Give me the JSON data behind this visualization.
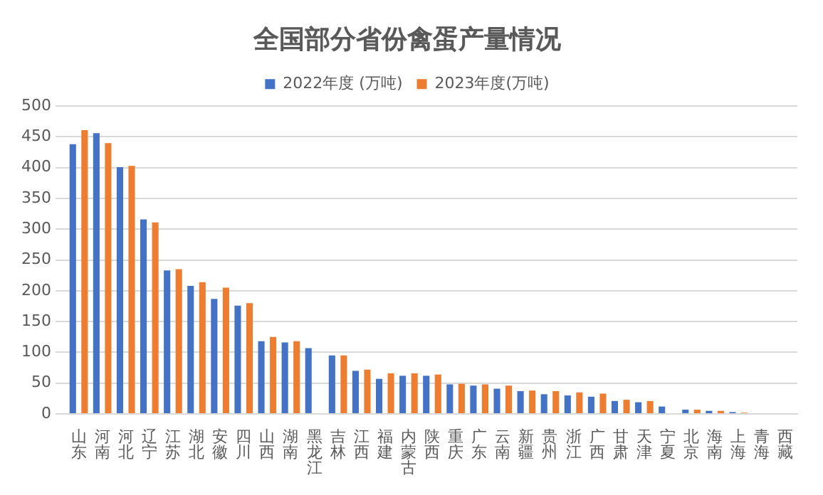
{
  "chart_data": {
    "type": "bar",
    "title": "全国部分省份禽蛋产量情况",
    "categories": [
      "山东",
      "河南",
      "河北",
      "辽宁",
      "江苏",
      "湖北",
      "安徽",
      "四川",
      "山西",
      "湖南",
      "黑龙江",
      "吉林",
      "江西",
      "福建",
      "内蒙古",
      "陕西",
      "重庆",
      "广东",
      "云南",
      "新疆",
      "贵州",
      "浙江",
      "广西",
      "甘肃",
      "天津",
      "宁夏",
      "北京",
      "海南",
      "上海",
      "青海",
      "西藏"
    ],
    "series": [
      {
        "name": "2022年度 (万吨)",
        "color": "#4472c4",
        "values": [
          438,
          456,
          401,
          316,
          233,
          208,
          187,
          176,
          118,
          116,
          107,
          95,
          70,
          57,
          62,
          62,
          48,
          46,
          41,
          37,
          32,
          30,
          28,
          21,
          19,
          12,
          7,
          5,
          3,
          null,
          null
        ]
      },
      {
        "name": "2023年度(万吨)",
        "color": "#ed7d31",
        "values": [
          461,
          440,
          403,
          311,
          235,
          214,
          205,
          180,
          125,
          118,
          null,
          95,
          72,
          66,
          66,
          64,
          49,
          48,
          46,
          38,
          37,
          35,
          33,
          23,
          21,
          null,
          7,
          5,
          2,
          null,
          null
        ]
      }
    ],
    "ylim": [
      0,
      500
    ],
    "yticks": [
      0,
      50,
      100,
      150,
      200,
      250,
      300,
      350,
      400,
      450,
      500
    ],
    "grid": "y",
    "legend": "top"
  }
}
